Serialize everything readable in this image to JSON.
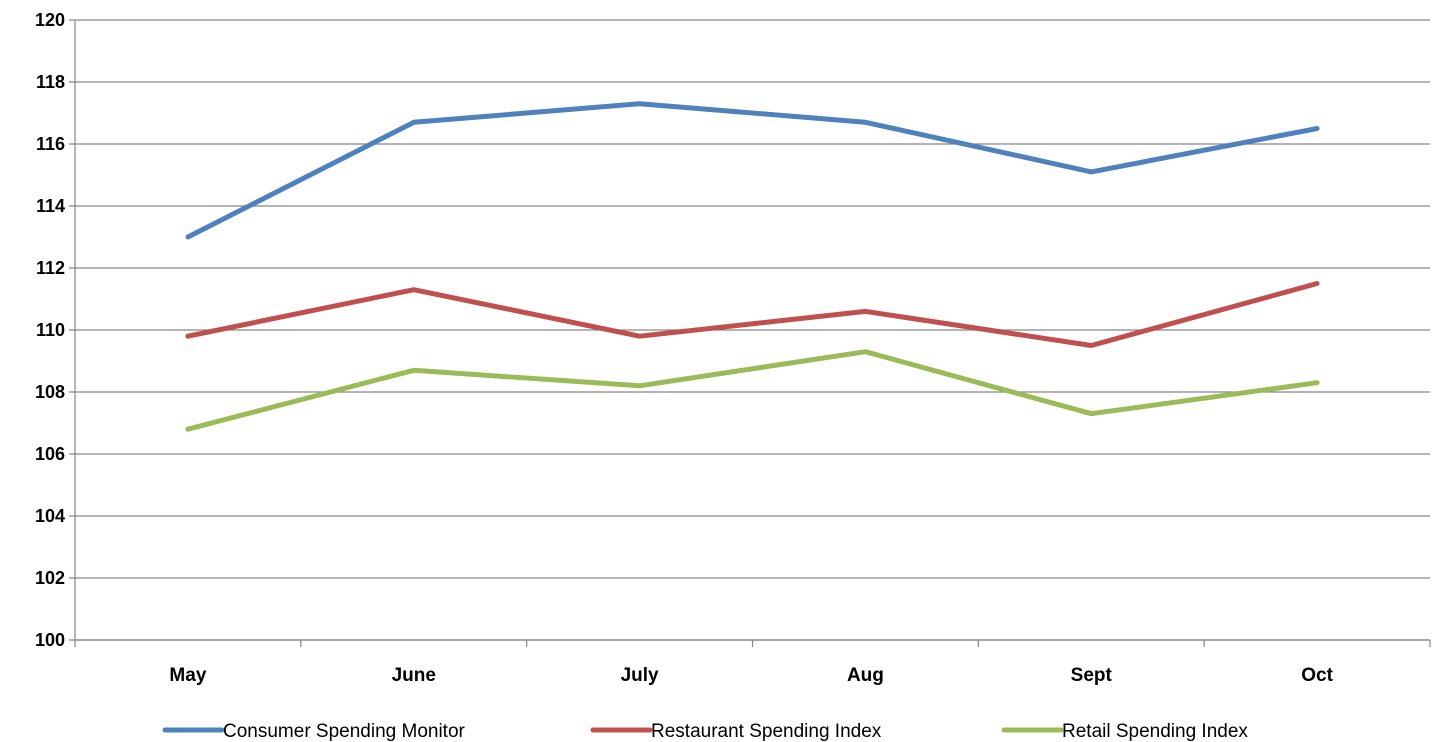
{
  "chart_data": {
    "type": "line",
    "title": "",
    "xlabel": "",
    "ylabel": "",
    "categories": [
      "May",
      "June",
      "July",
      "Aug",
      "Sept",
      "Oct"
    ],
    "ylim": [
      100,
      120
    ],
    "yticks": [
      100,
      102,
      104,
      106,
      108,
      110,
      112,
      114,
      116,
      118,
      120
    ],
    "grid": true,
    "legend": "bottom",
    "series": [
      {
        "name": "Consumer Spending Monitor",
        "color": "#4F81BD",
        "values": [
          113.0,
          116.7,
          117.3,
          116.7,
          115.1,
          116.5
        ]
      },
      {
        "name": "Restaurant Spending Index",
        "color": "#C0504D",
        "values": [
          109.8,
          111.3,
          109.8,
          110.6,
          109.5,
          111.5
        ]
      },
      {
        "name": "Retail Spending Index",
        "color": "#9BBB59",
        "values": [
          106.8,
          108.7,
          108.2,
          109.3,
          107.3,
          108.3
        ]
      }
    ]
  }
}
